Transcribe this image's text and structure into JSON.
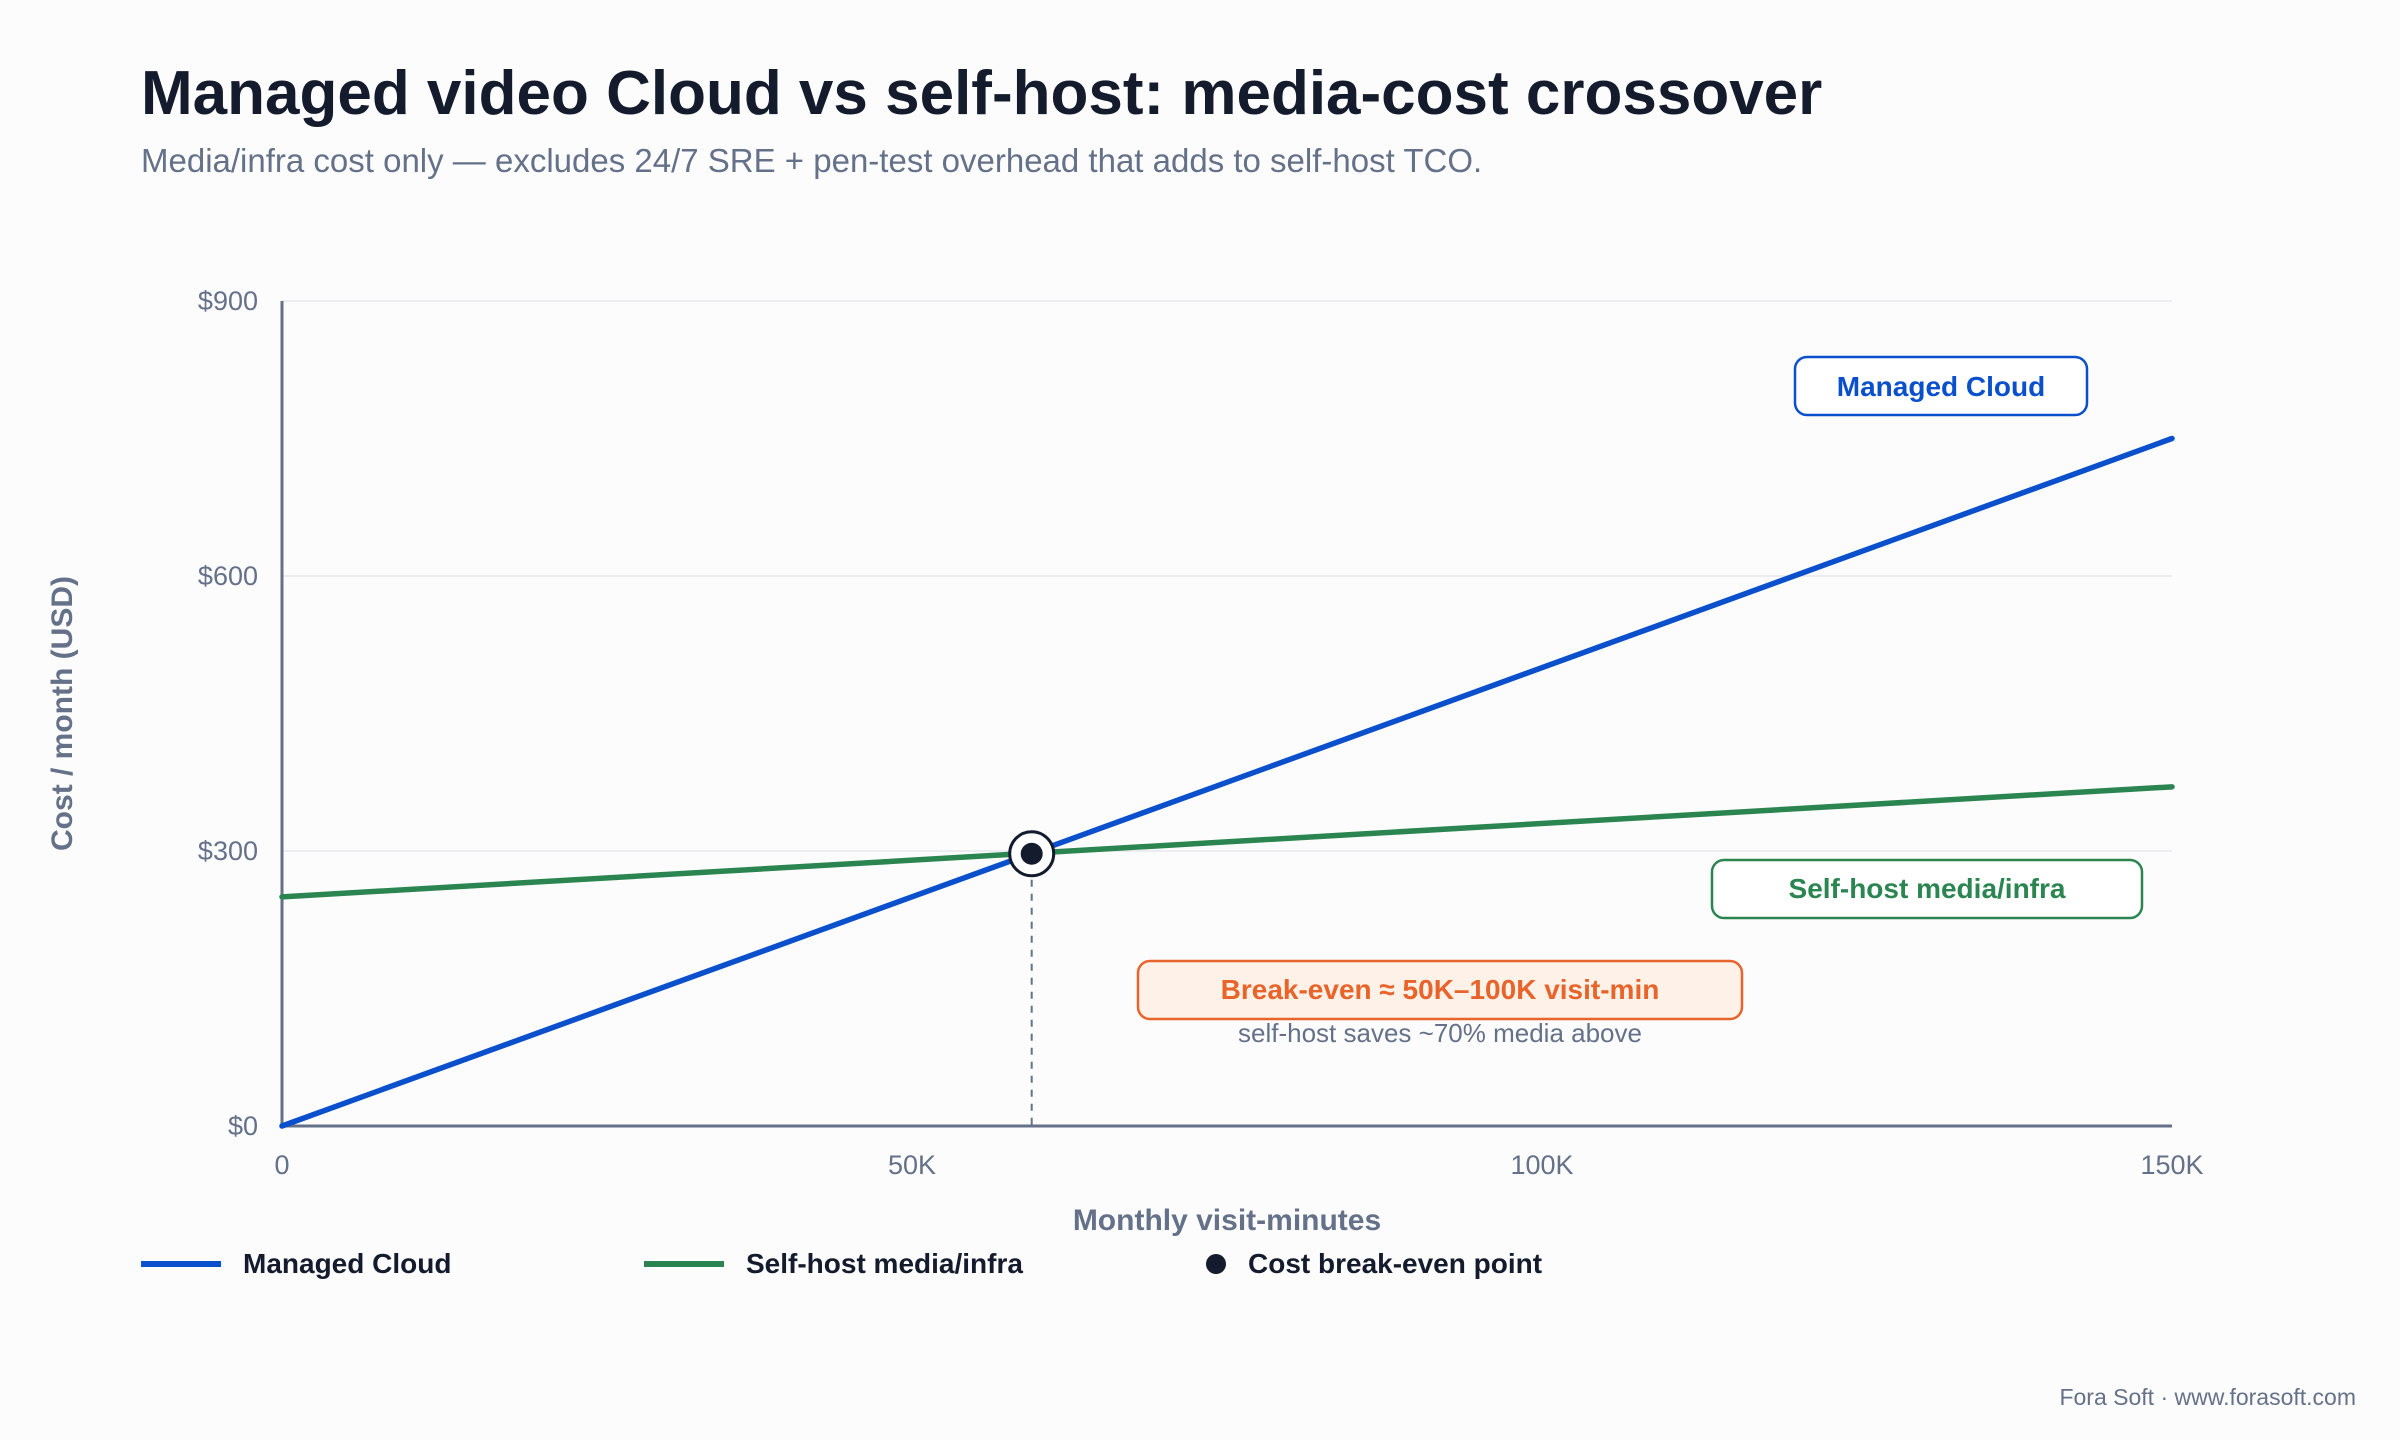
{
  "title": "Managed video Cloud vs self-host: media-cost crossover",
  "subtitle": "Media/infra cost only — excludes 24/7 SRE + pen-test overhead that adds to self-host TCO.",
  "footer": "Fora Soft · www.forasoft.com",
  "colors": {
    "managed": "#0a4fcc",
    "selfhost": "#2b8550",
    "breakeven": "#e8642a",
    "axis": "#647189",
    "grid": "#e6e8ec",
    "dark": "#141b2d"
  },
  "chart_data": {
    "type": "line",
    "xlabel": "Monthly visit-minutes",
    "ylabel": "Cost / month (USD)",
    "xlim": [
      0,
      150000
    ],
    "ylim": [
      0,
      900
    ],
    "x_ticks": [
      0,
      50000,
      100000,
      150000
    ],
    "x_tick_labels": [
      "0",
      "50K",
      "100K",
      "150K"
    ],
    "y_ticks": [
      0,
      300,
      600,
      900
    ],
    "y_tick_labels": [
      "$0",
      "$300",
      "$600",
      "$900"
    ],
    "grid": true,
    "legend_position": "bottom",
    "series": [
      {
        "name": "Managed Cloud",
        "x": [
          0,
          150000
        ],
        "y": [
          0,
          750
        ]
      },
      {
        "name": "Self-host media/infra",
        "x": [
          0,
          150000
        ],
        "y": [
          250,
          370
        ]
      }
    ],
    "breakeven_point": {
      "name": "Cost break-even point",
      "x": 59500,
      "y": 297
    },
    "annotations": {
      "managed_label": "Managed Cloud",
      "selfhost_label": "Self-host media/infra",
      "breakeven_label": "Break-even ≈ 50K–100K visit-min",
      "breakeven_note": "self-host saves ~70% media above"
    }
  }
}
